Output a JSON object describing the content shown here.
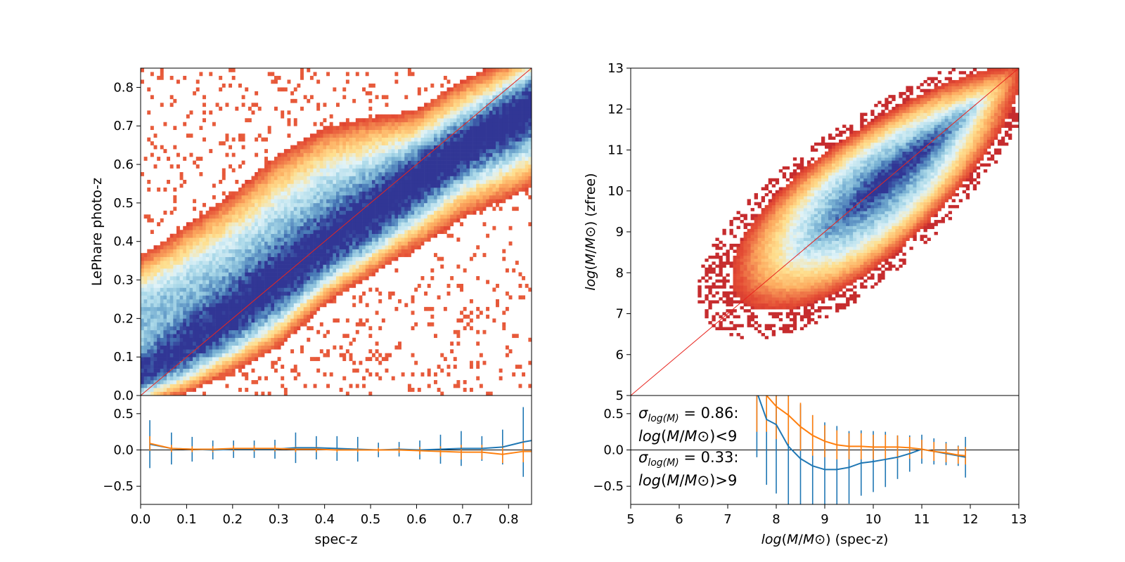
{
  "chart_data": [
    {
      "id": "left_top",
      "type": "heatmap",
      "xlabel": "",
      "ylabel": "LePhare photo-z",
      "xlim": [
        0.0,
        0.85
      ],
      "ylim": [
        0.0,
        0.85
      ],
      "yticks": [
        "0.0",
        "0.1",
        "0.2",
        "0.3",
        "0.4",
        "0.5",
        "0.6",
        "0.7",
        "0.8"
      ],
      "yticks_values": [
        0.0,
        0.1,
        0.2,
        0.3,
        0.4,
        0.5,
        0.6,
        0.7,
        0.8
      ],
      "colormap": [
        "#b2182b",
        "#e34a33",
        "#fdae61",
        "#fee090",
        "#e0f3f8",
        "#abd9e9",
        "#74add1",
        "#4575b4",
        "#313695"
      ],
      "one_to_one_line_color": "#e8251f",
      "ridges": [
        {
          "x": [
            0.0,
            0.1,
            0.2,
            0.3,
            0.4,
            0.5,
            0.6,
            0.7,
            0.85
          ],
          "y": [
            0.06,
            0.13,
            0.21,
            0.3,
            0.39,
            0.47,
            0.56,
            0.64,
            0.75
          ],
          "width": [
            0.035,
            0.045,
            0.05,
            0.055,
            0.05,
            0.05,
            0.045,
            0.04,
            0.045
          ],
          "intensity": 1.0
        },
        {
          "x": [
            0.0,
            0.1,
            0.2,
            0.3,
            0.4,
            0.5,
            0.6,
            0.7,
            0.85
          ],
          "y": [
            0.2,
            0.24,
            0.3,
            0.38,
            0.47,
            0.52,
            0.56,
            0.64,
            0.72
          ],
          "width": [
            0.07,
            0.09,
            0.1,
            0.11,
            0.1,
            0.09,
            0.08,
            0.08,
            0.08
          ],
          "intensity": 0.45
        }
      ]
    },
    {
      "id": "left_bottom",
      "type": "line",
      "xlabel": "spec-z",
      "ylabel": "",
      "xlim": [
        0.0,
        0.85
      ],
      "ylim": [
        -0.75,
        0.75
      ],
      "xticks": [
        "0.0",
        "0.1",
        "0.2",
        "0.3",
        "0.4",
        "0.5",
        "0.6",
        "0.7",
        "0.8"
      ],
      "xticks_values": [
        0.0,
        0.1,
        0.2,
        0.3,
        0.4,
        0.5,
        0.6,
        0.7,
        0.8
      ],
      "yticks": [
        "0.5",
        "0.0",
        "−0.5"
      ],
      "yticks_values": [
        0.5,
        0.0,
        -0.5
      ],
      "series": [
        {
          "color": "#1f77b4",
          "x": [
            0.02,
            0.067,
            0.112,
            0.157,
            0.202,
            0.247,
            0.292,
            0.337,
            0.382,
            0.427,
            0.472,
            0.517,
            0.562,
            0.607,
            0.652,
            0.697,
            0.742,
            0.787,
            0.832,
            0.85
          ],
          "y": [
            0.08,
            0.02,
            0.01,
            0.0,
            0.01,
            0.01,
            0.01,
            0.03,
            0.03,
            0.02,
            0.01,
            0.0,
            0.01,
            0.0,
            0.01,
            0.02,
            0.02,
            0.04,
            0.11,
            0.13
          ],
          "err": [
            0.33,
            0.22,
            0.17,
            0.13,
            0.12,
            0.12,
            0.13,
            0.21,
            0.16,
            0.17,
            0.17,
            0.1,
            0.1,
            0.13,
            0.2,
            0.24,
            0.17,
            0.24,
            0.48,
            0.0
          ]
        },
        {
          "color": "#ff7f0e",
          "x": [
            0.02,
            0.067,
            0.112,
            0.157,
            0.202,
            0.247,
            0.292,
            0.337,
            0.382,
            0.427,
            0.472,
            0.517,
            0.562,
            0.607,
            0.652,
            0.697,
            0.742,
            0.787,
            0.832,
            0.85
          ],
          "y": [
            0.09,
            0.02,
            0.01,
            0.01,
            0.02,
            0.02,
            0.02,
            0.01,
            0.01,
            0.0,
            0.0,
            0.0,
            0.0,
            -0.01,
            -0.02,
            -0.03,
            -0.03,
            -0.06,
            -0.02,
            -0.02
          ],
          "err": [
            0.1,
            0.05,
            0.04,
            0.04,
            0.04,
            0.04,
            0.04,
            0.04,
            0.04,
            0.03,
            0.03,
            0.03,
            0.04,
            0.05,
            0.07,
            0.1,
            0.1,
            0.12,
            0.15,
            0.0
          ]
        }
      ]
    },
    {
      "id": "right_top",
      "type": "heatmap",
      "xlabel": "",
      "ylabel": "log(M/M⊙) (zfree)",
      "xlim": [
        5,
        13
      ],
      "ylim": [
        5,
        13
      ],
      "yticks": [
        "5",
        "6",
        "7",
        "8",
        "9",
        "10",
        "11",
        "12",
        "13"
      ],
      "yticks_values": [
        5,
        6,
        7,
        8,
        9,
        10,
        11,
        12,
        13
      ],
      "one_to_one_line_color": "#e8251f",
      "density_ridge": {
        "x": [
          7.7,
          13.0
        ],
        "y": [
          7.7,
          13.0
        ],
        "scatter_sigma": [
          0.75,
          0.2
        ]
      }
    },
    {
      "id": "right_bottom",
      "type": "line",
      "xlabel": "log(M/M⊙) (spec-z)",
      "ylabel": "",
      "xlim": [
        5,
        13
      ],
      "ylim": [
        -0.75,
        0.75
      ],
      "xticks": [
        "5",
        "6",
        "7",
        "8",
        "9",
        "10",
        "11",
        "12",
        "13"
      ],
      "xticks_values": [
        5,
        6,
        7,
        8,
        9,
        10,
        11,
        12,
        13
      ],
      "yticks": [
        "0.5",
        "0.0",
        "−0.5"
      ],
      "yticks_values": [
        0.5,
        0.0,
        -0.5
      ],
      "annotations": [
        {
          "sigma_value": "0.86",
          "condition": "<9"
        },
        {
          "sigma_value": "0.33",
          "condition": ">9"
        }
      ],
      "series": [
        {
          "color": "#1f77b4",
          "x": [
            7.6,
            7.8,
            8.0,
            8.25,
            8.5,
            8.75,
            9.0,
            9.25,
            9.5,
            9.75,
            10.0,
            10.25,
            10.5,
            10.75,
            11.0,
            11.25,
            11.5,
            11.75,
            11.9
          ],
          "y": [
            0.8,
            0.42,
            0.35,
            0.05,
            -0.12,
            -0.22,
            -0.27,
            -0.27,
            -0.24,
            -0.18,
            -0.16,
            -0.13,
            -0.1,
            -0.05,
            0.01,
            -0.02,
            -0.05,
            -0.08,
            -0.1
          ],
          "err": [
            0.9,
            0.9,
            0.95,
            0.8,
            0.75,
            0.7,
            0.65,
            0.6,
            0.5,
            0.45,
            0.42,
            0.38,
            0.3,
            0.25,
            0.2,
            0.18,
            0.16,
            0.14,
            0.28
          ]
        },
        {
          "color": "#ff7f0e",
          "x": [
            7.6,
            7.8,
            8.0,
            8.25,
            8.5,
            8.75,
            9.0,
            9.25,
            9.5,
            9.75,
            10.0,
            10.25,
            10.5,
            10.75,
            11.0,
            11.25,
            11.5,
            11.75,
            11.9
          ],
          "y": [
            0.8,
            0.75,
            0.6,
            0.48,
            0.32,
            0.2,
            0.12,
            0.07,
            0.05,
            0.05,
            0.04,
            0.04,
            0.04,
            0.03,
            0.01,
            -0.02,
            -0.04,
            -0.07,
            -0.08
          ],
          "err": [
            0.55,
            0.5,
            0.45,
            0.4,
            0.33,
            0.28,
            0.22,
            0.2,
            0.18,
            0.18,
            0.17,
            0.17,
            0.16,
            0.15,
            0.13,
            0.13,
            0.13,
            0.12,
            0.12
          ]
        }
      ]
    }
  ]
}
